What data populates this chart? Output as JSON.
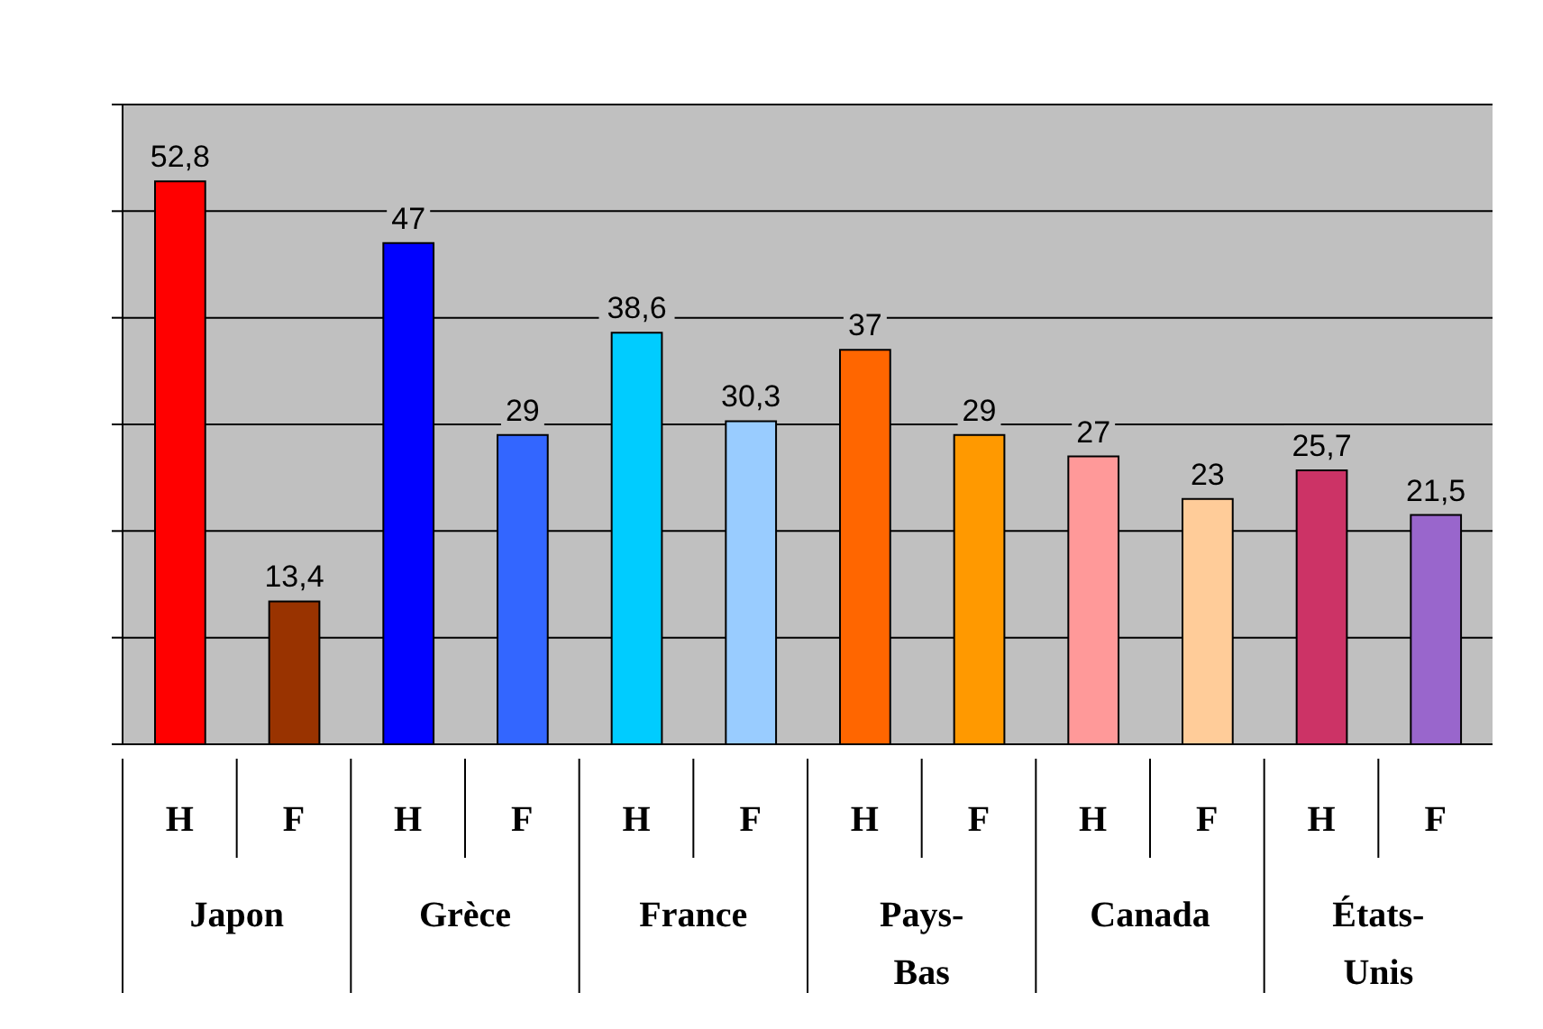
{
  "chart_data": {
    "type": "bar",
    "categories": [
      "H",
      "F",
      "H",
      "F",
      "H",
      "F",
      "H",
      "F",
      "H",
      "F",
      "H",
      "F"
    ],
    "values": [
      52.8,
      13.4,
      47,
      29,
      38.6,
      30.3,
      37,
      29,
      27,
      23,
      25.7,
      21.5
    ],
    "value_labels": [
      "52,8",
      "13,4",
      "47",
      "29",
      "38,6",
      "30,3",
      "37",
      "29",
      "27",
      "23",
      "25,7",
      "21,5"
    ],
    "colors": [
      "#ff0000",
      "#993300",
      "#0000ff",
      "#3366ff",
      "#00ccff",
      "#99ccff",
      "#ff6600",
      "#ff9900",
      "#ff9999",
      "#ffcc99",
      "#cc3366",
      "#9966cc"
    ],
    "ylim": [
      0,
      60
    ],
    "yticks": [
      {
        "value": 0,
        "label": null
      },
      {
        "value": 10,
        "label": null
      },
      {
        "value": 20,
        "label": null
      },
      {
        "value": 30,
        "label": null
      },
      {
        "value": 40,
        "label": null
      },
      {
        "value": 50,
        "label": null
      },
      {
        "value": 60,
        "label": null
      }
    ],
    "grid": "y",
    "annotations": [
      "Japon",
      "Grèce",
      "France",
      "Pays-Bas",
      "Canada",
      "États-Unis"
    ]
  }
}
